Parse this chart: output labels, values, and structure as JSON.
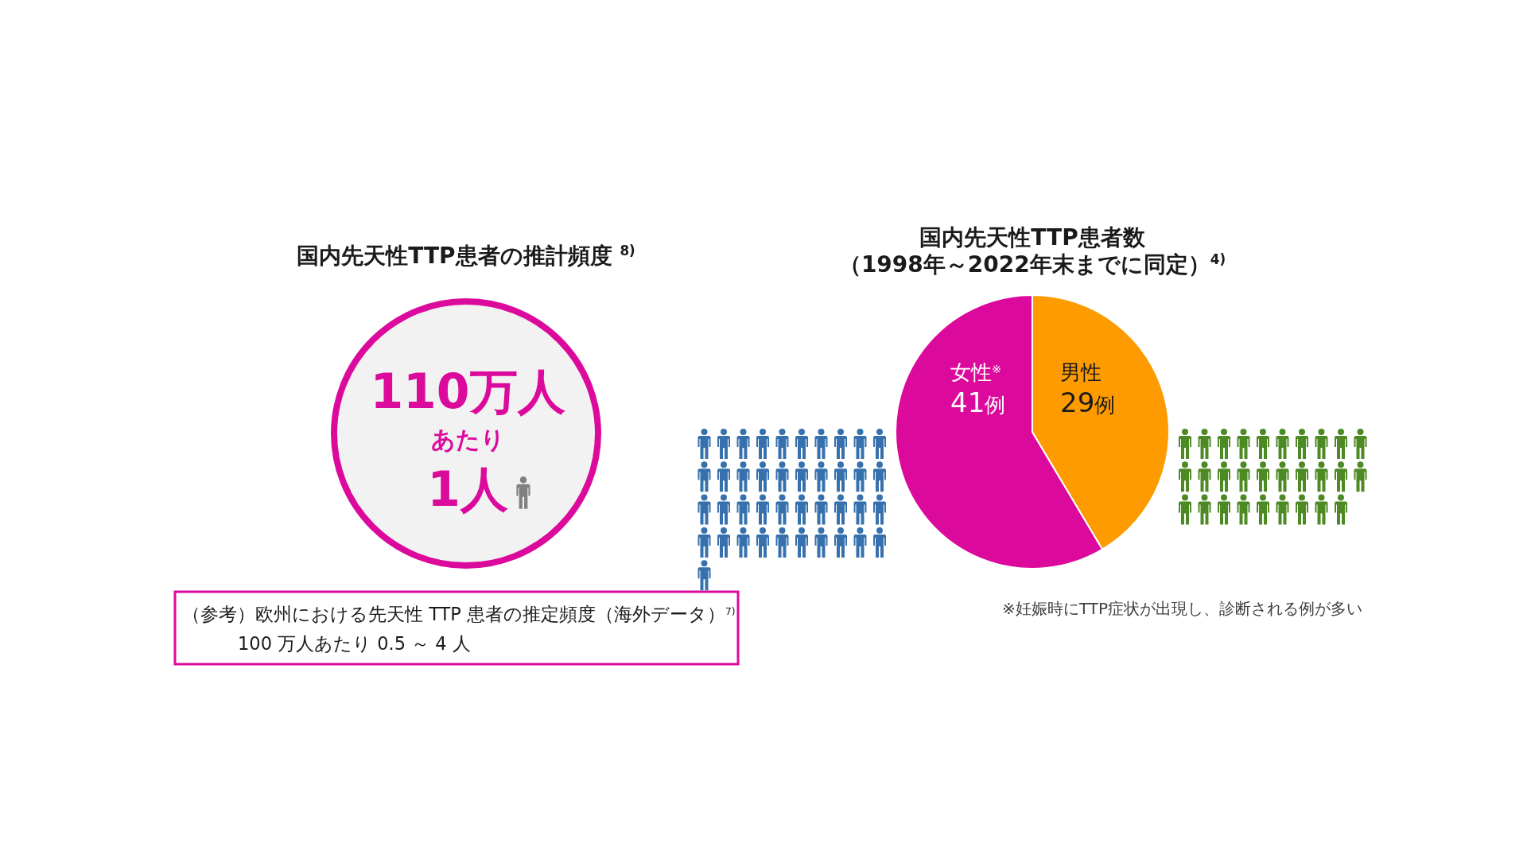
{
  "chart_data": [
    {
      "type": "other",
      "title": "国内先天性TTP患者の推計頻度 $^{8)}$",
      "annotations": [
        "110万人",
        "あたり",
        "1人",
        "（参考）欧州における先天性 TTP 患者の推定頻度（海外データ）$^{7)}$\n100 万人あたり 0.5 ～ 4 人"
      ]
    },
    {
      "type": "pie",
      "title": "国内先天性TTP患者数",
      "subtitle": "（1998年～2022年末までに同定）$^{4)}$",
      "categories": [
        "女性$^{※}$",
        "男性"
      ],
      "values": [
        41,
        29
      ],
      "colors": [
        "#dc0a9c",
        "#fd9b00"
      ],
      "value_labels": [
        "41例",
        "29例"
      ],
      "annotations": [
        "※妊娠時にTTP症状が出現し、診断される例が多い"
      ]
    }
  ]
}
